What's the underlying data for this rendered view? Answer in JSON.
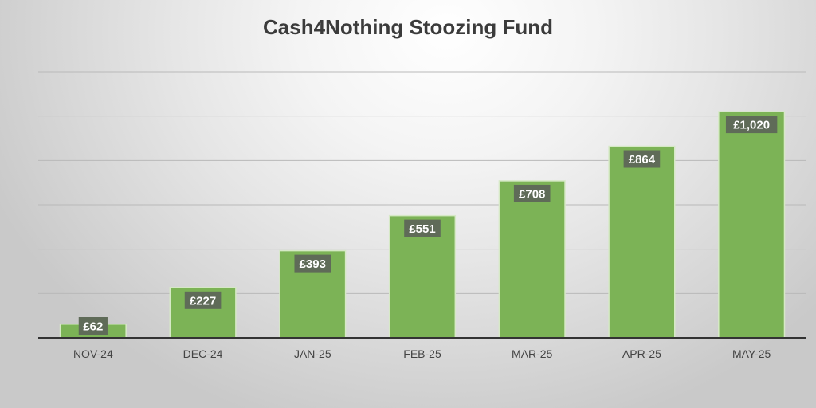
{
  "chart_data": {
    "type": "bar",
    "title": "Cash4Nothing Stoozing Fund",
    "xlabel": "",
    "ylabel": "",
    "categories": [
      "NOV-24",
      "DEC-24",
      "JAN-25",
      "FEB-25",
      "MAR-25",
      "APR-25",
      "MAY-25"
    ],
    "values": [
      62,
      227,
      393,
      551,
      708,
      864,
      1020
    ],
    "data_labels": [
      "£62",
      "£227",
      "£393",
      "£551",
      "£708",
      "£864",
      "£1,020"
    ],
    "ylim": [
      0,
      1200
    ],
    "grid": true,
    "legend": "none",
    "colors": {
      "bar": "#7cb356",
      "bar_edge": "#d6e9c6",
      "label_bg": "#5f6b58",
      "label_text": "#ffffff",
      "grid": "#b9b9b9",
      "axis": "#333333",
      "title": "#3b3b3b",
      "tick_text": "#444444"
    }
  }
}
